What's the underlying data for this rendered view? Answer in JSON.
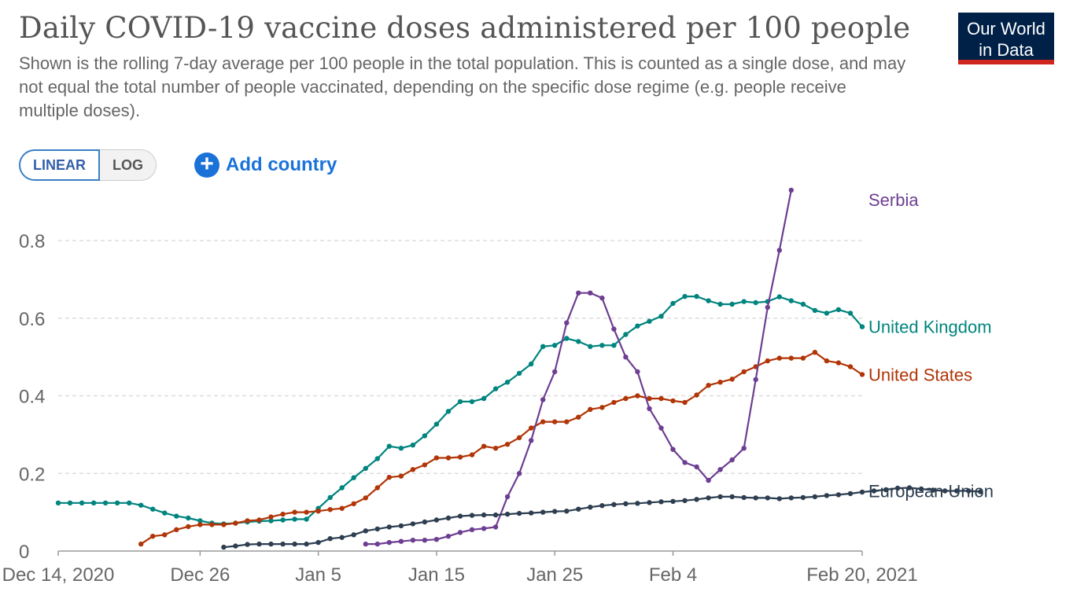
{
  "header": {
    "title": "Daily COVID-19 vaccine doses administered per 100 people",
    "subtitle": "Shown is the rolling 7-day average per 100 people in the total population. This is counted as a single dose, and may not equal the total number of people vaccinated, depending on the specific dose regime (e.g. people receive multiple doses).",
    "logo_line1": "Our World",
    "logo_line2": "in Data"
  },
  "controls": {
    "linear_label": "LINEAR",
    "log_label": "LOG",
    "add_country_label": "Add country",
    "add_icon": "plus-circle-icon"
  },
  "colors": {
    "Serbia": "#6d3e91",
    "United Kingdom": "#00847e",
    "United States": "#b13507",
    "European Union": "#2d3e50",
    "brand": "#002147",
    "accent": "#1a72d9"
  },
  "chart_data": {
    "type": "line",
    "title": "Daily COVID-19 vaccine doses administered per 100 people",
    "xlabel": "",
    "ylabel": "",
    "x_start": "2020-12-14",
    "x_end": "2021-02-20",
    "ylim": [
      0,
      0.95
    ],
    "yticks": [
      0,
      0.2,
      0.4,
      0.6,
      0.8
    ],
    "ytick_labels": [
      "0",
      "0.2",
      "0.4",
      "0.6",
      "0.8"
    ],
    "xticks": [
      0,
      12,
      22,
      32,
      42,
      52,
      68
    ],
    "xtick_labels": [
      "Dec 14, 2020",
      "Dec 26",
      "Jan 5",
      "Jan 15",
      "Jan 25",
      "Feb 4",
      "Feb 20, 2021"
    ],
    "grid": true,
    "legend": "right-end labels",
    "series": [
      {
        "name": "United Kingdom",
        "start_day": 0,
        "values": [
          0.124,
          0.124,
          0.124,
          0.124,
          0.124,
          0.124,
          0.124,
          0.118,
          0.108,
          0.098,
          0.09,
          0.085,
          0.078,
          0.072,
          0.07,
          0.072,
          0.075,
          0.077,
          0.078,
          0.08,
          0.082,
          0.082,
          0.11,
          0.138,
          0.163,
          0.189,
          0.213,
          0.238,
          0.27,
          0.265,
          0.273,
          0.297,
          0.327,
          0.36,
          0.385,
          0.385,
          0.393,
          0.418,
          0.435,
          0.458,
          0.482,
          0.527,
          0.53,
          0.548,
          0.54,
          0.527,
          0.53,
          0.53,
          0.558,
          0.58,
          0.592,
          0.605,
          0.638,
          0.656,
          0.656,
          0.645,
          0.636,
          0.636,
          0.643,
          0.64,
          0.643,
          0.655,
          0.645,
          0.636,
          0.62,
          0.613,
          0.622,
          0.613,
          0.578
        ]
      },
      {
        "name": "United States",
        "start_day": 7,
        "values": [
          0.018,
          0.038,
          0.042,
          0.055,
          0.063,
          0.068,
          0.068,
          0.068,
          0.072,
          0.078,
          0.08,
          0.088,
          0.095,
          0.1,
          0.1,
          0.103,
          0.107,
          0.11,
          0.122,
          0.137,
          0.163,
          0.19,
          0.193,
          0.21,
          0.222,
          0.24,
          0.24,
          0.242,
          0.248,
          0.27,
          0.265,
          0.275,
          0.292,
          0.317,
          0.333,
          0.333,
          0.333,
          0.345,
          0.365,
          0.37,
          0.383,
          0.393,
          0.4,
          0.393,
          0.393,
          0.387,
          0.383,
          0.402,
          0.427,
          0.435,
          0.443,
          0.462,
          0.475,
          0.49,
          0.497,
          0.497,
          0.497,
          0.512,
          0.49,
          0.485,
          0.475,
          0.455
        ]
      },
      {
        "name": "Serbia",
        "start_day": 26,
        "values": [
          0.018,
          0.018,
          0.022,
          0.025,
          0.028,
          0.028,
          0.03,
          0.038,
          0.048,
          0.055,
          0.058,
          0.062,
          0.14,
          0.2,
          0.285,
          0.39,
          0.462,
          0.588,
          0.665,
          0.665,
          0.652,
          0.572,
          0.5,
          0.462,
          0.367,
          0.317,
          0.262,
          0.228,
          0.217,
          0.182,
          0.21,
          0.235,
          0.265,
          0.442,
          0.628,
          0.775,
          0.93
        ]
      },
      {
        "name": "European Union",
        "start_day": 14,
        "values": [
          0.01,
          0.013,
          0.017,
          0.018,
          0.018,
          0.018,
          0.018,
          0.018,
          0.022,
          0.032,
          0.035,
          0.042,
          0.052,
          0.057,
          0.062,
          0.065,
          0.07,
          0.075,
          0.08,
          0.085,
          0.09,
          0.092,
          0.093,
          0.093,
          0.095,
          0.097,
          0.098,
          0.1,
          0.102,
          0.103,
          0.108,
          0.113,
          0.117,
          0.12,
          0.122,
          0.123,
          0.125,
          0.127,
          0.128,
          0.13,
          0.133,
          0.137,
          0.14,
          0.14,
          0.138,
          0.137,
          0.137,
          0.135,
          0.137,
          0.138,
          0.14,
          0.143,
          0.145,
          0.148,
          0.152,
          0.155,
          0.158,
          0.162,
          0.163,
          0.16,
          0.157,
          0.155,
          0.155,
          0.155,
          0.153
        ]
      }
    ]
  }
}
